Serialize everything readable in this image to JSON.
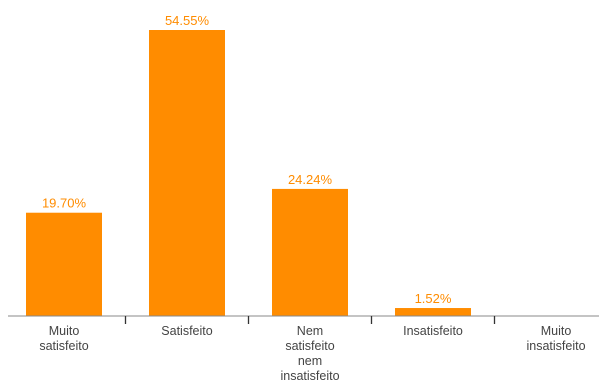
{
  "chart_data": {
    "type": "bar",
    "categories": [
      [
        "Muito",
        "satisfeito"
      ],
      [
        "Satisfeito"
      ],
      [
        "Nem",
        "satisfeito",
        "nem",
        "insatisfeito"
      ],
      [
        "Insatisfeito"
      ],
      [
        "Muito",
        "insatisfeito"
      ]
    ],
    "values": [
      19.7,
      54.55,
      24.24,
      1.52,
      0
    ],
    "data_labels": [
      "19.70%",
      "54.55%",
      "24.24%",
      "1.52%",
      ""
    ],
    "title": "",
    "xlabel": "",
    "ylabel": "",
    "ylim": [
      0,
      54.55
    ],
    "grid": false,
    "colors": {
      "bar": "#ff8c00",
      "label": "#ff8c00",
      "axis": "#888888",
      "tick": "#333333",
      "text": "#444444"
    }
  }
}
